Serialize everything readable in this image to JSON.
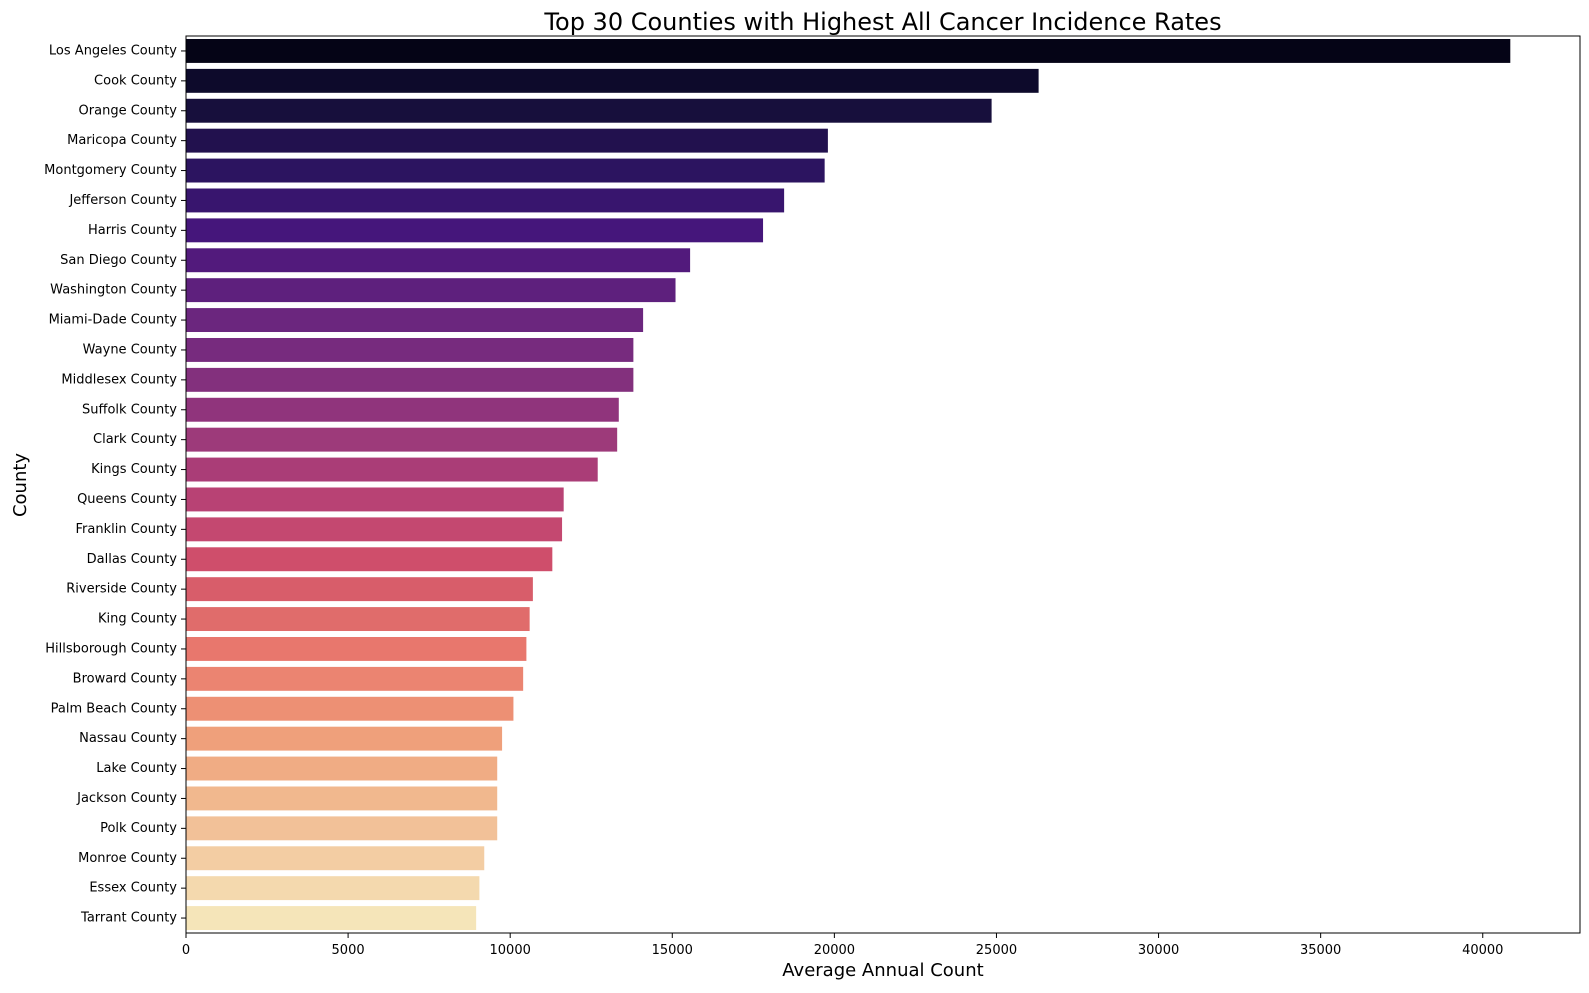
{
  "chart_data": {
    "type": "bar",
    "orientation": "horizontal",
    "title": "Top 30 Counties with Highest All Cancer Incidence Rates",
    "xlabel": "Average Annual Count",
    "ylabel": "County",
    "xlim": [
      0,
      43000
    ],
    "x_ticks": [
      0,
      5000,
      10000,
      15000,
      20000,
      25000,
      30000,
      35000,
      40000
    ],
    "x_tick_labels": [
      "0",
      "5000",
      "10000",
      "15000",
      "20000",
      "25000",
      "30000",
      "35000",
      "40000"
    ],
    "grid": false,
    "legend": "none",
    "palette": "magma",
    "categories": [
      "Los Angeles County",
      "Cook County",
      "Orange County",
      "Maricopa County",
      "Montgomery County",
      "Jefferson County",
      "Harris County",
      "San Diego County",
      "Washington County",
      "Miami-Dade County",
      "Wayne County",
      "Middlesex County",
      "Suffolk County",
      "Clark County",
      "Kings County",
      "Queens County",
      "Franklin County",
      "Dallas County",
      "Riverside County",
      "King County",
      "Hillsborough County",
      "Broward County",
      "Palm Beach County",
      "Nassau County",
      "Lake County",
      "Jackson County",
      "Polk County",
      "Monroe County",
      "Essex County",
      "Tarrant County"
    ],
    "values": [
      40850,
      26300,
      24850,
      19800,
      19700,
      18450,
      17800,
      15550,
      15100,
      14100,
      13800,
      13800,
      13350,
      13300,
      12700,
      11650,
      11600,
      11300,
      10700,
      10600,
      10500,
      10400,
      10100,
      9750,
      9600,
      9600,
      9600,
      9200,
      9050,
      8950
    ],
    "colors": [
      "#050416",
      "#0d0a2b",
      "#170f3c",
      "#22114e",
      "#2c1460",
      "#38156e",
      "#45167b",
      "#521a7c",
      "#5e207d",
      "#6b267e",
      "#772b7e",
      "#83307d",
      "#90347c",
      "#9d3a7a",
      "#aa3d77",
      "#b84274",
      "#c44870",
      "#cf4e6b",
      "#d85d6a",
      "#e06c6b",
      "#e8776d",
      "#eb8471",
      "#ed9074",
      "#efa07b",
      "#f0ac84",
      "#f1b88e",
      "#f2c198",
      "#f3cda3",
      "#f4d9ae",
      "#f5e5b9"
    ]
  }
}
